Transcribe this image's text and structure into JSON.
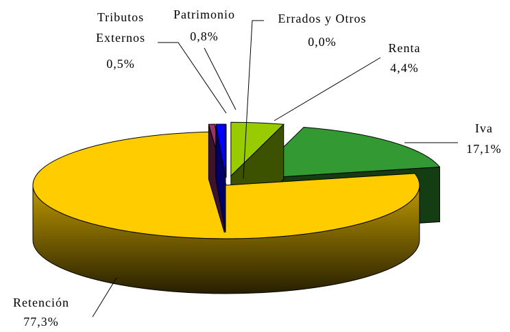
{
  "chart_data": {
    "type": "pie3d",
    "categories": [
      "Renta",
      "Iva",
      "Retención",
      "Tributos Externos",
      "Patrimonio",
      "Errados y Otros"
    ],
    "values": [
      4.4,
      17.1,
      77.3,
      0.5,
      0.8,
      0.0
    ],
    "value_labels": [
      "4,4%",
      "17,1%",
      "77,3%",
      "0,5%",
      "0,8%",
      "0,0%"
    ],
    "colors": [
      "#99cc00",
      "#339933",
      "#ffcc00",
      "#993366",
      "#0000ff",
      "#ffffff"
    ]
  }
}
